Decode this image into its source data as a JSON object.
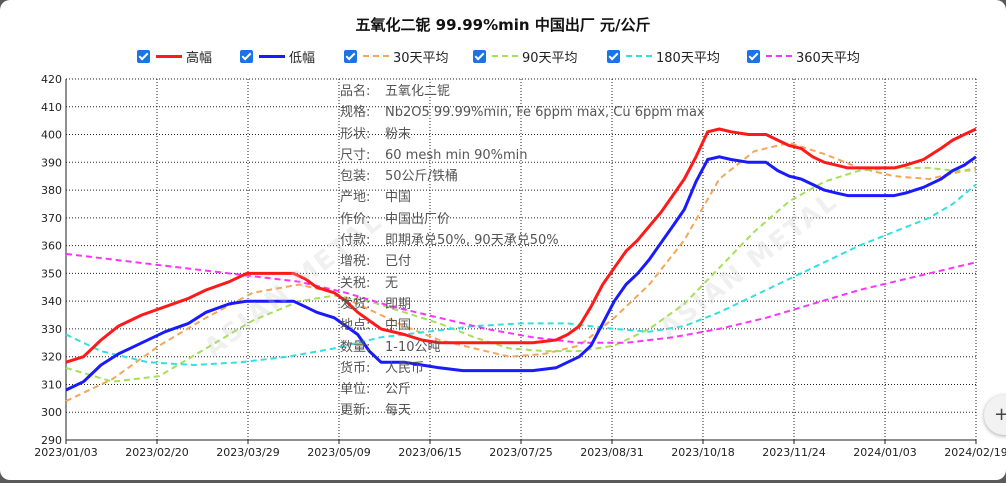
{
  "chart_data": {
    "type": "line",
    "title": "五氧化二铌 99.99%min 中国出厂 元/公斤",
    "ylim": [
      290,
      420
    ],
    "yticks": [
      290,
      300,
      310,
      320,
      330,
      340,
      350,
      360,
      370,
      380,
      390,
      400,
      410,
      420
    ],
    "x_tick_labels": [
      "2023/01/03",
      "2023/02/20",
      "2023/03/29",
      "2023/05/09",
      "2023/06/15",
      "2023/07/25",
      "2023/08/31",
      "2023/10/18",
      "2023/11/24",
      "2024/01/03",
      "2024/02/19"
    ],
    "grid": true,
    "legend_position": "top",
    "series": [
      {
        "name": "高幅",
        "color": "#ff1a1a",
        "dash": "solid",
        "width": 3,
        "points": [
          [
            0,
            318
          ],
          [
            3,
            320
          ],
          [
            6,
            326
          ],
          [
            9,
            331
          ],
          [
            13,
            335
          ],
          [
            17,
            338
          ],
          [
            21,
            341
          ],
          [
            24,
            344
          ],
          [
            28,
            347
          ],
          [
            31,
            350
          ],
          [
            35,
            350
          ],
          [
            39,
            350
          ],
          [
            41,
            348
          ],
          [
            43,
            345
          ],
          [
            46,
            343
          ],
          [
            48,
            340
          ],
          [
            50,
            336
          ],
          [
            52,
            333
          ],
          [
            54,
            330
          ],
          [
            58,
            328
          ],
          [
            61,
            326
          ],
          [
            64,
            325
          ],
          [
            68,
            325
          ],
          [
            72,
            325
          ],
          [
            76,
            325
          ],
          [
            80,
            325
          ],
          [
            84,
            326
          ],
          [
            86,
            328
          ],
          [
            88,
            331
          ],
          [
            90,
            338
          ],
          [
            92,
            346
          ],
          [
            94,
            352
          ],
          [
            96,
            358
          ],
          [
            98,
            362
          ],
          [
            100,
            367
          ],
          [
            102,
            372
          ],
          [
            104,
            378
          ],
          [
            106,
            384
          ],
          [
            108,
            392
          ],
          [
            110,
            401
          ],
          [
            112,
            402
          ],
          [
            114,
            401
          ],
          [
            117,
            400
          ],
          [
            120,
            400
          ],
          [
            122,
            398
          ],
          [
            124,
            396
          ],
          [
            126,
            395
          ],
          [
            128,
            392
          ],
          [
            130,
            390
          ],
          [
            132,
            389
          ],
          [
            134,
            388
          ],
          [
            138,
            388
          ],
          [
            142,
            388
          ],
          [
            144,
            389
          ],
          [
            147,
            391
          ],
          [
            150,
            395
          ],
          [
            152,
            398
          ],
          [
            154,
            400
          ],
          [
            156,
            402
          ]
        ]
      },
      {
        "name": "低幅",
        "color": "#1a1aff",
        "dash": "solid",
        "width": 3,
        "points": [
          [
            0,
            308
          ],
          [
            3,
            311
          ],
          [
            6,
            317
          ],
          [
            9,
            321
          ],
          [
            13,
            325
          ],
          [
            17,
            329
          ],
          [
            21,
            332
          ],
          [
            24,
            336
          ],
          [
            28,
            339
          ],
          [
            31,
            340
          ],
          [
            35,
            340
          ],
          [
            39,
            340
          ],
          [
            41,
            338
          ],
          [
            43,
            336
          ],
          [
            46,
            334
          ],
          [
            48,
            331
          ],
          [
            50,
            328
          ],
          [
            52,
            322
          ],
          [
            54,
            318
          ],
          [
            58,
            318
          ],
          [
            61,
            317
          ],
          [
            64,
            316
          ],
          [
            68,
            315
          ],
          [
            72,
            315
          ],
          [
            76,
            315
          ],
          [
            80,
            315
          ],
          [
            84,
            316
          ],
          [
            86,
            318
          ],
          [
            88,
            320
          ],
          [
            90,
            324
          ],
          [
            92,
            332
          ],
          [
            94,
            340
          ],
          [
            96,
            346
          ],
          [
            98,
            350
          ],
          [
            100,
            355
          ],
          [
            102,
            361
          ],
          [
            104,
            367
          ],
          [
            106,
            373
          ],
          [
            108,
            383
          ],
          [
            110,
            391
          ],
          [
            112,
            392
          ],
          [
            114,
            391
          ],
          [
            117,
            390
          ],
          [
            120,
            390
          ],
          [
            122,
            387
          ],
          [
            124,
            385
          ],
          [
            126,
            384
          ],
          [
            128,
            382
          ],
          [
            130,
            380
          ],
          [
            132,
            379
          ],
          [
            134,
            378
          ],
          [
            138,
            378
          ],
          [
            142,
            378
          ],
          [
            144,
            379
          ],
          [
            147,
            381
          ],
          [
            150,
            384
          ],
          [
            152,
            387
          ],
          [
            154,
            389
          ],
          [
            156,
            392
          ]
        ]
      },
      {
        "name": "30天平均",
        "color": "#f5a65b",
        "dash": "6,4",
        "width": 2,
        "points": [
          [
            0,
            304
          ],
          [
            8,
            312
          ],
          [
            16,
            324
          ],
          [
            24,
            334
          ],
          [
            32,
            343
          ],
          [
            40,
            346
          ],
          [
            46,
            343
          ],
          [
            52,
            337
          ],
          [
            58,
            331
          ],
          [
            64,
            326
          ],
          [
            70,
            323
          ],
          [
            76,
            320
          ],
          [
            82,
            321
          ],
          [
            88,
            324
          ],
          [
            94,
            334
          ],
          [
            100,
            346
          ],
          [
            106,
            362
          ],
          [
            112,
            384
          ],
          [
            118,
            394
          ],
          [
            124,
            397
          ],
          [
            130,
            393
          ],
          [
            136,
            388
          ],
          [
            142,
            385
          ],
          [
            148,
            384
          ],
          [
            152,
            386
          ],
          [
            156,
            388
          ]
        ]
      },
      {
        "name": "90天平均",
        "color": "#a4e05a",
        "dash": "6,4",
        "width": 2,
        "points": [
          [
            0,
            316
          ],
          [
            8,
            311
          ],
          [
            16,
            313
          ],
          [
            24,
            323
          ],
          [
            32,
            333
          ],
          [
            40,
            340
          ],
          [
            46,
            342
          ],
          [
            52,
            340
          ],
          [
            58,
            336
          ],
          [
            64,
            332
          ],
          [
            70,
            327
          ],
          [
            76,
            323
          ],
          [
            82,
            322
          ],
          [
            88,
            322
          ],
          [
            94,
            324
          ],
          [
            100,
            330
          ],
          [
            106,
            339
          ],
          [
            112,
            352
          ],
          [
            118,
            365
          ],
          [
            124,
            376
          ],
          [
            130,
            383
          ],
          [
            136,
            387
          ],
          [
            142,
            388
          ],
          [
            148,
            388
          ],
          [
            152,
            387
          ],
          [
            156,
            387
          ]
        ]
      },
      {
        "name": "180天平均",
        "color": "#33e0e0",
        "dash": "6,4",
        "width": 2,
        "points": [
          [
            0,
            328
          ],
          [
            6,
            322
          ],
          [
            14,
            318
          ],
          [
            22,
            317
          ],
          [
            30,
            318
          ],
          [
            38,
            320
          ],
          [
            46,
            323
          ],
          [
            54,
            327
          ],
          [
            62,
            329
          ],
          [
            70,
            331
          ],
          [
            78,
            332
          ],
          [
            86,
            332
          ],
          [
            94,
            330
          ],
          [
            100,
            329
          ],
          [
            106,
            331
          ],
          [
            112,
            336
          ],
          [
            118,
            342
          ],
          [
            124,
            348
          ],
          [
            130,
            354
          ],
          [
            136,
            360
          ],
          [
            142,
            365
          ],
          [
            148,
            370
          ],
          [
            152,
            375
          ],
          [
            156,
            382
          ]
        ]
      },
      {
        "name": "360天平均",
        "color": "#ff33ff",
        "dash": "6,4",
        "width": 2,
        "points": [
          [
            0,
            357
          ],
          [
            8,
            355
          ],
          [
            16,
            353
          ],
          [
            24,
            351
          ],
          [
            32,
            349
          ],
          [
            40,
            347
          ],
          [
            48,
            343
          ],
          [
            56,
            338
          ],
          [
            64,
            334
          ],
          [
            72,
            330
          ],
          [
            80,
            327
          ],
          [
            88,
            325
          ],
          [
            96,
            325
          ],
          [
            104,
            327
          ],
          [
            112,
            330
          ],
          [
            120,
            334
          ],
          [
            128,
            339
          ],
          [
            136,
            344
          ],
          [
            144,
            348
          ],
          [
            150,
            351
          ],
          [
            156,
            354
          ]
        ]
      }
    ]
  },
  "info_panel": [
    {
      "k": "品名:",
      "v": "五氧化二铌"
    },
    {
      "k": "规格:",
      "v": "Nb2O5 99.99%min, Fe 6ppm max, Cu 6ppm max"
    },
    {
      "k": "形状:",
      "v": "粉末"
    },
    {
      "k": "尺寸:",
      "v": "60 mesh min 90%min"
    },
    {
      "k": "包装:",
      "v": "50公斤/铁桶"
    },
    {
      "k": "产地:",
      "v": "中国"
    },
    {
      "k": "作价:",
      "v": "中国出厂价"
    },
    {
      "k": "付款:",
      "v": "即期承兑50%, 90天承兑50%"
    },
    {
      "k": "增税:",
      "v": "已付"
    },
    {
      "k": "关税:",
      "v": "无"
    },
    {
      "k": "发货:",
      "v": "即期"
    },
    {
      "k": "地点:",
      "v": "中国"
    },
    {
      "k": "数量:",
      "v": "1-10公吨"
    },
    {
      "k": "货币:",
      "v": "人民币"
    },
    {
      "k": "单位:",
      "v": "公斤"
    },
    {
      "k": "更新:",
      "v": "每天"
    }
  ],
  "watermark": [
    "ASIAN METAL",
    "亚洲金属网"
  ],
  "side_button_icon": "plus-icon"
}
